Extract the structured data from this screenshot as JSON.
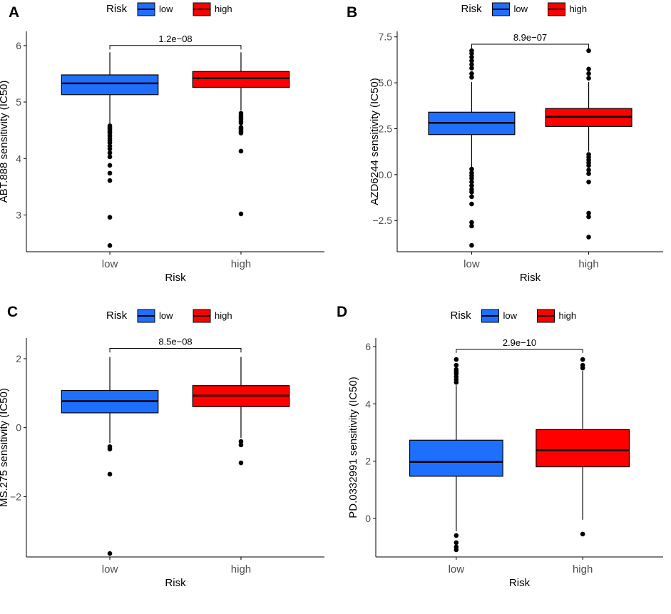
{
  "chart_data": [
    {
      "type": "boxplot",
      "panel": "A",
      "legend": {
        "title": "Risk",
        "entries": [
          "low",
          "high"
        ],
        "colors": [
          "#1f6fff",
          "#ff0000"
        ],
        "placement": "top"
      },
      "xlabel": "Risk",
      "ylabel": "ABT.888 sensitivity (IC50)",
      "categories": [
        "low",
        "high"
      ],
      "ylim": [
        2.35,
        6.25
      ],
      "yticks": [
        3,
        4,
        5,
        6
      ],
      "ytick_labels": [
        "3",
        "4",
        "5",
        "6"
      ],
      "boxes": [
        {
          "name": "low",
          "q1": 5.13,
          "median": 5.33,
          "q3": 5.48,
          "whisker_low": 4.62,
          "whisker_high": 5.88,
          "outliers": [
            4.58,
            4.55,
            4.52,
            4.48,
            4.45,
            4.4,
            4.35,
            4.32,
            4.28,
            4.22,
            4.17,
            4.1,
            4.03,
            3.88,
            3.74,
            3.61,
            2.96,
            2.46
          ]
        },
        {
          "name": "high",
          "q1": 5.26,
          "median": 5.42,
          "q3": 5.54,
          "whisker_low": 4.85,
          "whisker_high": 5.88,
          "outliers": [
            4.8,
            4.76,
            4.73,
            4.7,
            4.66,
            4.63,
            4.55,
            4.52,
            4.48,
            4.45,
            4.13,
            3.02
          ]
        }
      ],
      "comparison": {
        "label": "1.2e−08",
        "y": 6.0,
        "tick": 0.07
      }
    },
    {
      "type": "boxplot",
      "panel": "B",
      "legend": {
        "title": "Risk",
        "entries": [
          "low",
          "high"
        ],
        "colors": [
          "#1f6fff",
          "#ff0000"
        ],
        "placement": "top"
      },
      "xlabel": "Risk",
      "ylabel": "AZD6244 sensitivity (IC50)",
      "categories": [
        "low",
        "high"
      ],
      "ylim": [
        -4.2,
        7.8
      ],
      "yticks": [
        -2.5,
        0.0,
        2.5,
        5.0,
        7.5
      ],
      "ytick_labels": [
        "−2.5",
        "0.0",
        "2.5",
        "5.0",
        "7.5"
      ],
      "boxes": [
        {
          "name": "low",
          "q1": 2.18,
          "median": 2.82,
          "q3": 3.4,
          "whisker_low": 0.42,
          "whisker_high": 5.05,
          "outliers": [
            6.75,
            6.6,
            6.4,
            6.2,
            6.0,
            5.8,
            5.5,
            5.3,
            0.3,
            0.1,
            -0.05,
            -0.2,
            -0.4,
            -0.6,
            -0.8,
            -0.95,
            -1.2,
            -1.6,
            -2.6,
            -2.8,
            -3.85
          ]
        },
        {
          "name": "high",
          "q1": 2.62,
          "median": 3.15,
          "q3": 3.6,
          "whisker_low": 1.25,
          "whisker_high": 5.05,
          "outliers": [
            6.75,
            5.75,
            5.5,
            5.25,
            1.1,
            0.95,
            0.8,
            0.65,
            0.5,
            0.25,
            0.05,
            -0.4,
            -2.1,
            -2.3,
            -3.4
          ]
        }
      ],
      "comparison": {
        "label": "8.9e−07",
        "y": 7.1,
        "tick": 0.35
      }
    },
    {
      "type": "boxplot",
      "panel": "C",
      "legend": {
        "title": "Risk",
        "entries": [
          "low",
          "high"
        ],
        "colors": [
          "#1f6fff",
          "#ff0000"
        ],
        "placement": "top"
      },
      "xlabel": "Risk",
      "ylabel": "MS.275 sensitivity (IC50)",
      "categories": [
        "low",
        "high"
      ],
      "ylim": [
        -3.75,
        2.6
      ],
      "yticks": [
        -2,
        0,
        2
      ],
      "ytick_labels": [
        "−2",
        "0",
        "2"
      ],
      "boxes": [
        {
          "name": "low",
          "q1": 0.43,
          "median": 0.77,
          "q3": 1.08,
          "whisker_low": -0.45,
          "whisker_high": 2.05,
          "outliers": [
            -0.55,
            -0.62,
            -1.35,
            -3.65
          ]
        },
        {
          "name": "high",
          "q1": 0.61,
          "median": 0.93,
          "q3": 1.22,
          "whisker_low": -0.3,
          "whisker_high": 2.05,
          "outliers": [
            -0.4,
            -0.5,
            -1.02
          ]
        }
      ],
      "comparison": {
        "label": "8.5e−08",
        "y": 2.3,
        "tick": 0.12
      }
    },
    {
      "type": "boxplot",
      "panel": "D",
      "legend": {
        "title": "Risk",
        "entries": [
          "low",
          "high"
        ],
        "colors": [
          "#1f6fff",
          "#ff0000"
        ],
        "placement": "top"
      },
      "xlabel": "Risk",
      "ylabel": "PD.0332991 sensitivity (IC50)",
      "categories": [
        "low",
        "high"
      ],
      "ylim": [
        -1.35,
        6.3
      ],
      "yticks": [
        0,
        2,
        4,
        6
      ],
      "ytick_labels": [
        "0",
        "2",
        "4",
        "6"
      ],
      "boxes": [
        {
          "name": "low",
          "q1": 1.47,
          "median": 1.97,
          "q3": 2.73,
          "whisker_low": -0.45,
          "whisker_high": 4.65,
          "outliers": [
            5.55,
            5.35,
            5.2,
            5.12,
            5.05,
            4.95,
            4.85,
            4.75,
            -0.6,
            -0.85,
            -1.0,
            -1.1
          ]
        },
        {
          "name": "high",
          "q1": 1.8,
          "median": 2.38,
          "q3": 3.1,
          "whisker_low": -0.05,
          "whisker_high": 5.15,
          "outliers": [
            5.55,
            5.35,
            5.25,
            -0.55
          ]
        }
      ],
      "comparison": {
        "label": "2.9e−10",
        "y": 5.9,
        "tick": 0.12
      }
    }
  ]
}
